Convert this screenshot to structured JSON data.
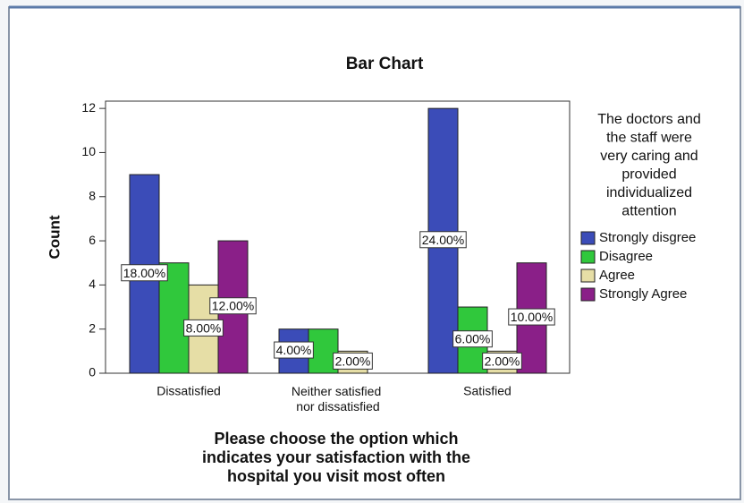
{
  "chart_data": {
    "type": "bar",
    "title": "Bar Chart",
    "ylabel": "Count",
    "xlabel_lines": [
      "Please choose the option which",
      "indicates your satisfaction with the",
      "hospital you visit most often"
    ],
    "legend_title_lines": [
      "The doctors and",
      "the staff were",
      "very caring and",
      "provided",
      "individualized",
      "attention"
    ],
    "categories": [
      "Dissatisfied",
      "Neither satisfied nor dissatisfied",
      "Satisfied"
    ],
    "series": [
      {
        "name": "Strongly disgree",
        "color": "#3b4cb8",
        "values": [
          9,
          2,
          12
        ],
        "value_labels": [
          "18.00%",
          "4.00%",
          "24.00%"
        ]
      },
      {
        "name": "Disagree",
        "color": "#30c83c",
        "values": [
          5,
          2,
          3
        ],
        "value_labels": [
          null,
          null,
          "6.00%"
        ]
      },
      {
        "name": "Agree",
        "color": "#e6dea6",
        "values": [
          4,
          1,
          1
        ],
        "value_labels": [
          "8.00%",
          "2.00%",
          "2.00%"
        ]
      },
      {
        "name": "Strongly Agree",
        "color": "#8a1f88",
        "values": [
          6,
          0,
          5
        ],
        "value_labels": [
          "12.00%",
          null,
          "10.00%"
        ]
      }
    ],
    "ylim": [
      0,
      12.33
    ],
    "yticks": [
      0,
      2,
      4,
      6,
      8,
      10,
      12
    ],
    "legend": "right"
  }
}
